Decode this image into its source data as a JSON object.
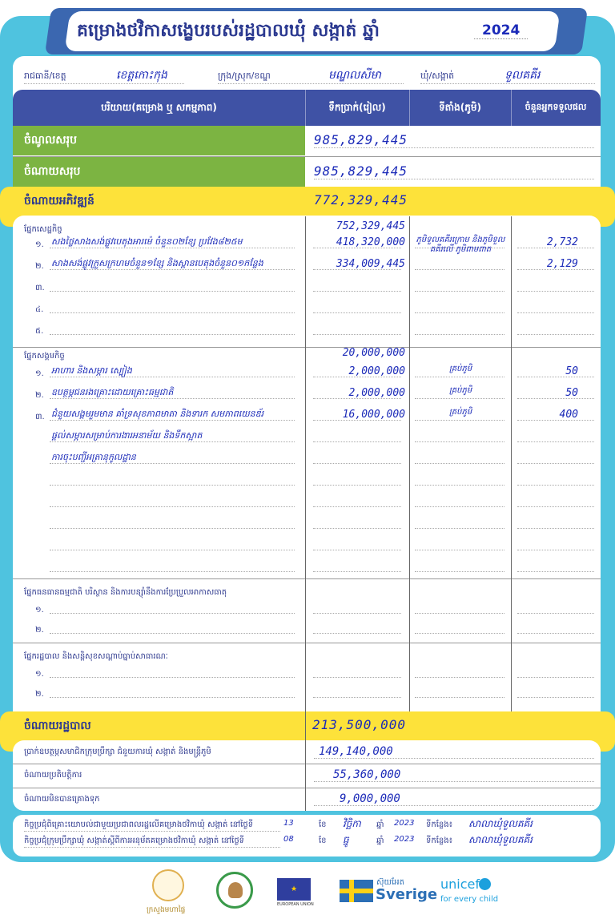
{
  "title": {
    "text": "គម្រោងថវិកាសង្ខេបរបស់រដ្ឋបាលឃុំ សង្កាត់ ឆ្នាំ",
    "year": "2024"
  },
  "location": {
    "province_label": "រាជធានី/ខេត្ត",
    "province": "ខេត្តកោះកុង",
    "district_label": "ក្រុង/ស្រុក/ខណ្ឌ",
    "district": "មណ្ឌលសីមា",
    "commune_label": "ឃុំ/សង្កាត់",
    "commune": "ទួលគគីរ"
  },
  "table": {
    "headers": [
      "បរិយាយ(គម្រោង ឬ សកម្មភាព)",
      "ទឹកប្រាក់(រៀល)",
      "ទីតាំង(ភូមិ)",
      "ចំនួនអ្នកទទួលផល"
    ],
    "total_income": {
      "label": "ចំណូលសរុប",
      "amount": "985,829,445"
    },
    "total_expense": {
      "label": "ចំណាយសរុប",
      "amount": "985,829,445"
    },
    "development": {
      "label": "ចំណាយអភិវឌ្ឍន៍",
      "amount": "772,329,445"
    },
    "sections": [
      {
        "title": "ផ្នែកសេដ្ឋកិច្ច",
        "amount": "752,329,445",
        "items": [
          {
            "no": "១.",
            "text": "សងថ្លៃសាងសង់ផ្លូវបេតុងអារម៉េ ចំនួន០២ខ្សែ ប្រវែង៨២៥ម",
            "amount": "418,320,000",
            "location": "ភូមិទួលគគីរក្រោម និងភូមិទួលគគីរលើ ភូមិពាមពាត",
            "beneficiaries": "2,732"
          },
          {
            "no": "២.",
            "text": "សាងសង់ផ្លូវក្រួសក្រហមចំនួន១ខ្សែ និងស្ពានបេតុងចំនួន០១កន្លែង",
            "amount": "334,009,445",
            "location": "",
            "beneficiaries": "2,129"
          },
          {
            "no": "៣.",
            "text": ""
          },
          {
            "no": "៤.",
            "text": ""
          },
          {
            "no": "៥.",
            "text": ""
          }
        ]
      },
      {
        "title": "ផ្នែកសង្គមកិច្ច",
        "amount": "20,000,000",
        "items": [
          {
            "no": "១.",
            "text": "អាហារ និងសម្ភារ ស្បៀង",
            "amount": "2,000,000",
            "location": "គ្រប់ភូមិ",
            "beneficiaries": "50"
          },
          {
            "no": "២.",
            "text": "ឧបត្ថម្ភជនរងគ្រោះដោយគ្រោះធម្មជាតិ",
            "amount": "2,000,000",
            "location": "គ្រប់ភូមិ",
            "beneficiaries": "50"
          },
          {
            "no": "៣.",
            "text": "ជំនួយសង្គមរួមមាន គាំទ្រសុខភាពមាតា និងទារក សមភាពយេនឌ័រ",
            "amount": "16,000,000",
            "location": "គ្រប់ភូមិ",
            "beneficiaries": "400"
          },
          {
            "no": "",
            "text": "ផ្តល់សម្ភារសម្រាប់ការងារអនាម័យ និងទឹកស្អាត"
          },
          {
            "no": "",
            "text": "ការចុះបញ្ជីអត្រានុកូលដ្ឋាន"
          }
        ]
      },
      {
        "title": "ផ្នែកធនធានធម្មជាតិ បរិស្ថាន និងការបន្ស៊ាំនឹងការប្រែប្រួលអាកាសធាតុ",
        "items": [
          {
            "no": "១.",
            "text": ""
          },
          {
            "no": "២.",
            "text": ""
          }
        ]
      },
      {
        "title": "ផ្នែករដ្ឋបាល និងសន្តិសុខសណ្តាប់ធ្នាប់សាធារណៈ",
        "items": [
          {
            "no": "១.",
            "text": ""
          },
          {
            "no": "២.",
            "text": ""
          }
        ]
      }
    ],
    "administration": {
      "label": "ចំណាយរដ្ឋបាល",
      "amount": "213,500,000"
    },
    "admin_rows": [
      {
        "label": "ប្រាក់ឧបត្ថម្ភសមាជិកក្រុមប្រឹក្សា ជំនួយការឃុំ សង្កាត់ និងមន្ត្រីភូមិ",
        "amount": "149,140,000"
      },
      {
        "label": "ចំណាយប្រតិបត្តិការ",
        "amount": "55,360,000"
      },
      {
        "label": "ចំណាយមិនបានគ្រោងទុក",
        "amount": "9,000,000"
      }
    ]
  },
  "meetings": [
    {
      "text": "កិច្ចប្រជុំពិគ្រោះយោបល់ជាមួយប្រជាពលរដ្ឋលើគម្រោងថវិកាឃុំ សង្កាត់ នៅថ្ងៃទី",
      "day": "13",
      "month_label": "ខែ",
      "month": "វិច្ឆិកា",
      "year_label": "ឆ្នាំ",
      "year": "2023",
      "place_label": "ទីកន្លែង៖",
      "place": "សាលាឃុំទួលគគីរ"
    },
    {
      "text": "កិច្ចប្រជុំក្រុមប្រឹក្សាឃុំ សង្កាត់ស្តីពីការអនុម័តគម្រោងថវិកាឃុំ សង្កាត់ នៅថ្ងៃទី",
      "day": "08",
      "month_label": "ខែ",
      "month": "ធ្នូ",
      "year_label": "ឆ្នាំ",
      "year": "2023",
      "place_label": "ទីកន្លែង៖",
      "place": "សាលាឃុំទួលគគីរ"
    }
  ],
  "logos": {
    "ministry": "ក្រសួងមហាផ្ទៃ",
    "eu": "EUROPEAN UNION",
    "sweden_kh": "ស៊ុយអែត",
    "sweden": "Sverige",
    "unicef": "unicef",
    "unicef_tag": "for every child"
  },
  "colors": {
    "panel": "#4fc3df",
    "header": "#3f52a5",
    "green": "#7cb442",
    "yellow": "#fde23a",
    "value_text": "#1b2ab8"
  }
}
